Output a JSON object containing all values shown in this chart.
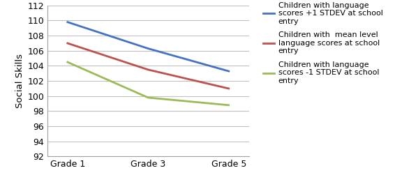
{
  "x_labels": [
    "Grade 1",
    "Grade 3",
    "Grade 5"
  ],
  "x_positions": [
    0,
    1,
    2
  ],
  "series": [
    {
      "label": "Children with language\nscores +1 STDEV at school\nentry",
      "values": [
        109.8,
        106.3,
        103.3
      ],
      "color": "#4472C4",
      "linewidth": 2.0
    },
    {
      "label": "Children with  mean level\nlanguage scores at school\nentry",
      "values": [
        107.0,
        103.5,
        101.0
      ],
      "color": "#C0504D",
      "linewidth": 2.0
    },
    {
      "label": "Children with language\nscores -1 STDEV at school\nentry",
      "values": [
        104.5,
        99.8,
        98.8
      ],
      "color": "#9BBB59",
      "linewidth": 2.0
    }
  ],
  "ylabel": "Social Skills",
  "ylim": [
    92,
    112
  ],
  "yticks": [
    92,
    94,
    96,
    98,
    100,
    102,
    104,
    106,
    108,
    110,
    112
  ],
  "grid_color": "#C0C0C0",
  "background_color": "#FFFFFF",
  "legend_fontsize": 8.0,
  "ylabel_fontsize": 9.5,
  "tick_fontsize": 9
}
